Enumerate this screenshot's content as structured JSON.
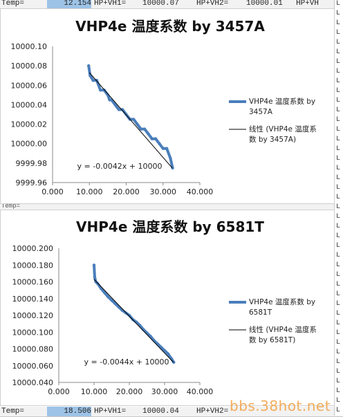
{
  "spreadsheet": {
    "top_row": {
      "c1": "Temp=",
      "c2": "12.154",
      "c3": "HP+VH1=",
      "c4": "10000.07",
      "c5": "HP+VH2=",
      "c6": "10000.01",
      "c7": "HP+VH"
    },
    "mid_row": {
      "c1": "Temp=",
      "c2": "",
      "c3": "",
      "c4": ""
    },
    "bottom_row": {
      "c1": "Temp=",
      "c2": "18.506",
      "c3": "HP+VH1=",
      "c4": "10000.04",
      "c5": "HP+VH2=",
      "c6": ""
    },
    "edge_col": [
      "L",
      "L",
      "L",
      "L",
      "L",
      "L",
      "L",
      "L",
      "L",
      "L",
      "L",
      "L",
      "L",
      "L",
      "L",
      "L",
      "L",
      "L",
      "L",
      "L",
      "L",
      "L",
      "L",
      "L",
      "L",
      "L",
      "L",
      "L",
      "L",
      "L",
      "L",
      "L",
      "L",
      "L",
      "L",
      "L",
      "L",
      "L",
      "L",
      "L",
      "L",
      "L",
      "L"
    ]
  },
  "chart_data": [
    {
      "type": "scatter",
      "title": "VHP4e 温度系数 by 3457A",
      "xlabel": "",
      "ylabel": "",
      "xlim": [
        0,
        40
      ],
      "ylim": [
        9999.96,
        10000.1
      ],
      "x_ticks": [
        "0.000",
        "10.000",
        "20.000",
        "30.000",
        "40.000"
      ],
      "y_ticks": [
        "9999.96",
        "9999.98",
        "10000.00",
        "10000.02",
        "10000.04",
        "10000.06",
        "10000.08",
        "10000.10"
      ],
      "series": [
        {
          "name": "VHP4e 温度系数 by 3457A",
          "kind": "data",
          "color": "#4a7ebb",
          "x": [
            9.8,
            10.2,
            11.0,
            12.0,
            13.0,
            14.0,
            15.0,
            15.5,
            16.0,
            17.0,
            18.0,
            19.0,
            20.0,
            21.0,
            22.0,
            23.0,
            24.0,
            25.0,
            26.0,
            27.0,
            28.0,
            29.0,
            30.0,
            31.0,
            32.0,
            32.6
          ],
          "y": [
            10000.08,
            10000.07,
            10000.065,
            10000.065,
            10000.055,
            10000.055,
            10000.05,
            10000.045,
            10000.045,
            10000.04,
            10000.035,
            10000.035,
            10000.03,
            10000.025,
            10000.025,
            10000.02,
            10000.015,
            10000.015,
            10000.01,
            10000.005,
            10000.005,
            10000.0,
            9999.995,
            9999.995,
            9999.985,
            9999.975
          ]
        },
        {
          "name": "线性 (VHP4e 温度系数 by 3457A)",
          "kind": "trend",
          "color": "#000000",
          "x": [
            10.0,
            32.5
          ],
          "y": [
            10000.073,
            9999.975
          ]
        }
      ],
      "trend_equation": "y = -0.0042x + 10000",
      "legend_position": "right"
    },
    {
      "type": "scatter",
      "title": "VHP4e 温度系数 by 6581T",
      "xlabel": "",
      "ylabel": "",
      "xlim": [
        0,
        40
      ],
      "ylim": [
        10000.04,
        10000.2
      ],
      "x_ticks": [
        "0.000",
        "10.000",
        "20.000",
        "30.000",
        "40.000"
      ],
      "y_ticks": [
        "10000.040",
        "10000.060",
        "10000.080",
        "10000.100",
        "10000.120",
        "10000.140",
        "10000.160",
        "10000.180",
        "10000.200"
      ],
      "series": [
        {
          "name": "VHP4e 温度系数 by 6581T",
          "kind": "data",
          "color": "#4a7ebb",
          "x": [
            10.0,
            10.2,
            10.5,
            11.0,
            12.0,
            13.0,
            14.0,
            15.0,
            16.0,
            17.0,
            18.0,
            19.0,
            20.0,
            21.0,
            22.0,
            23.0,
            24.0,
            25.0,
            26.0,
            27.0,
            28.0,
            29.0,
            30.0,
            31.0,
            32.0,
            32.6
          ],
          "y": [
            10000.18,
            10000.165,
            10000.16,
            10000.158,
            10000.152,
            10000.147,
            10000.142,
            10000.138,
            10000.134,
            10000.13,
            10000.126,
            10000.123,
            10000.12,
            10000.115,
            10000.112,
            10000.108,
            10000.103,
            10000.099,
            10000.095,
            10000.09,
            10000.086,
            10000.082,
            10000.078,
            10000.074,
            10000.068,
            10000.064
          ]
        },
        {
          "name": "线性 (VHP4e 温度系数 by 6581T)",
          "kind": "trend",
          "color": "#000000",
          "x": [
            10.0,
            32.5
          ],
          "y": [
            10000.163,
            10000.064
          ]
        }
      ],
      "trend_equation": "y = -0.0044x + 10000",
      "legend_position": "right"
    }
  ],
  "legend": [
    {
      "series_lines": [
        "VHP4e 温度系数 by",
        "3457A"
      ],
      "trend_lines": [
        "线性 (VHP4e 温度系",
        "数 by 3457A)"
      ]
    },
    {
      "series_lines": [
        "VHP4e 温度系数 by",
        "6581T"
      ],
      "trend_lines": [
        "线性 (VHP4e 温度系",
        "数 by 6581T)"
      ]
    }
  ],
  "watermark": "bbs.38hot.net"
}
